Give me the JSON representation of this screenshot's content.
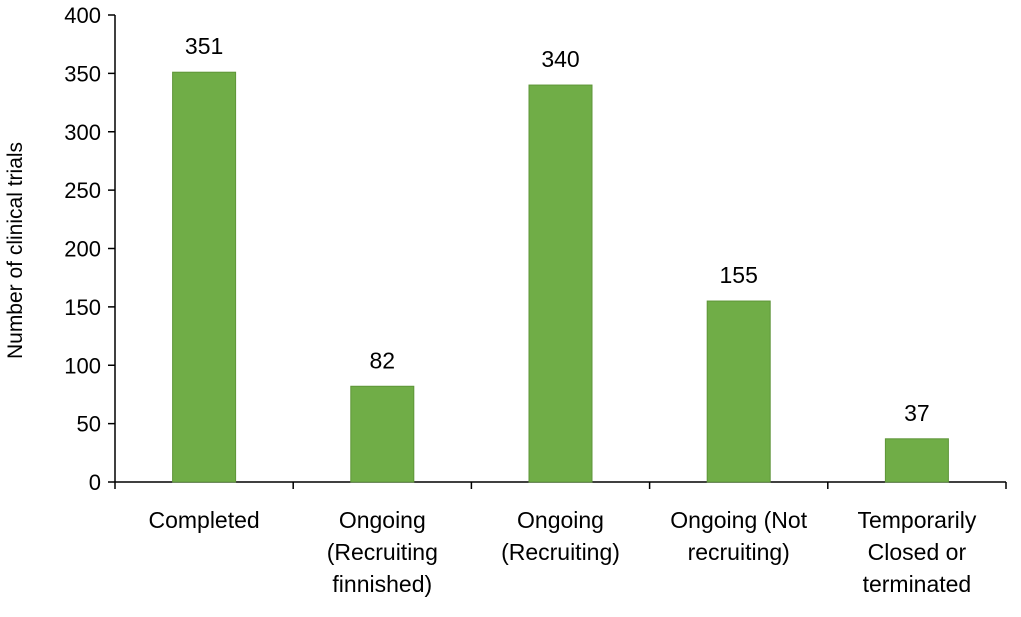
{
  "chart_data": {
    "type": "bar",
    "categories": [
      [
        "Completed"
      ],
      [
        "Ongoing",
        "(Recruiting",
        "finnished)"
      ],
      [
        "Ongoing",
        "(Recruiting)"
      ],
      [
        "Ongoing (Not",
        "recruiting)"
      ],
      [
        "Temporarily",
        "Closed or",
        "terminated"
      ]
    ],
    "values": [
      351,
      82,
      340,
      155,
      37
    ],
    "data_labels": [
      "351",
      "82",
      "340",
      "155",
      "37"
    ],
    "ylabel": "Number of clinical trials",
    "xlabel": "",
    "ylim": [
      0,
      400
    ],
    "yticks": [
      0,
      50,
      100,
      150,
      200,
      250,
      300,
      350,
      400
    ],
    "grid": false,
    "legend": "none",
    "bar_color": "#70ad47",
    "bar_edge_color": "#5e9538",
    "axis_color": "#000000"
  }
}
